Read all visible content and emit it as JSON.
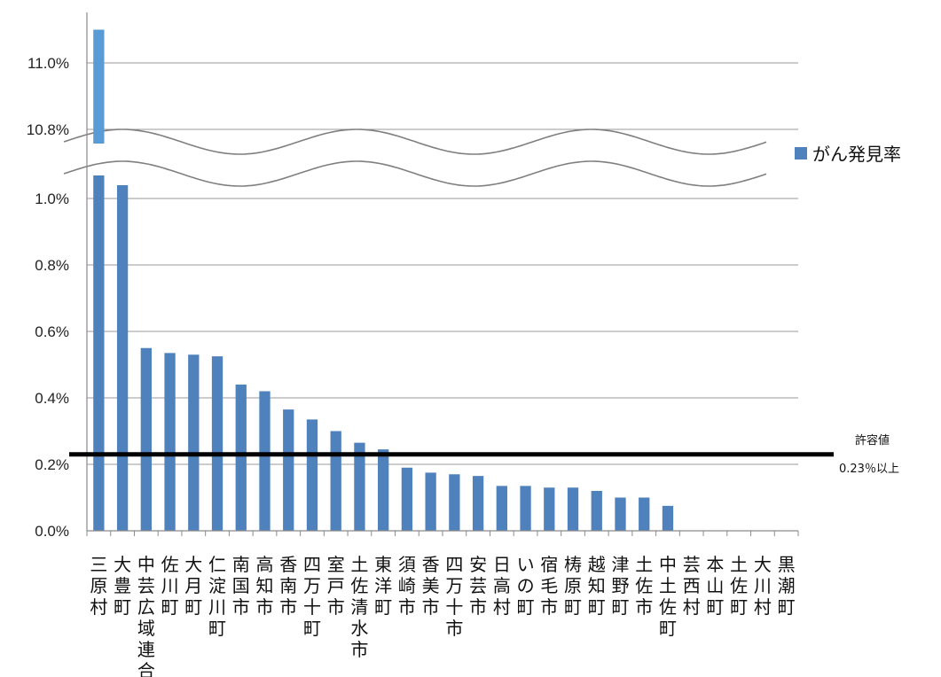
{
  "chart_data": {
    "type": "bar",
    "broken_axis": true,
    "categories": [
      "三原村",
      "大豊町",
      "中芸広域連合",
      "佐川町",
      "大月町",
      "仁淀川町",
      "南国市",
      "高知市",
      "香南市",
      "四万十町",
      "室戸市",
      "土佐清水市",
      "東洋町",
      "須崎市",
      "香美市",
      "四万十市",
      "安芸市",
      "日高村",
      "いの町",
      "宿毛市",
      "梼原町",
      "越知町",
      "津野町",
      "土佐市",
      "中土佐町",
      "芸西村",
      "本山町",
      "土佐町",
      "大川村",
      "黒潮町"
    ],
    "series": [
      {
        "name": "がん発見率",
        "values": [
          11.1,
          1.04,
          0.55,
          0.535,
          0.53,
          0.525,
          0.44,
          0.42,
          0.365,
          0.335,
          0.3,
          0.265,
          0.245,
          0.19,
          0.175,
          0.17,
          0.165,
          0.135,
          0.135,
          0.13,
          0.13,
          0.12,
          0.1,
          0.1,
          0.075,
          0,
          0,
          0,
          0,
          0
        ]
      }
    ],
    "y_ticks_lower": [
      "0.0%",
      "0.2%",
      "0.4%",
      "0.6%",
      "0.8%",
      "1.0%"
    ],
    "y_ticks_upper": [
      "10.8%",
      "11.0%"
    ],
    "ylim_lower": [
      0,
      1.0
    ],
    "ylim_upper": [
      10.8,
      11.0
    ],
    "threshold": {
      "value": 0.23,
      "label_line1": "許容値",
      "label_line2": "0.23％以上"
    },
    "legend": {
      "position": "right",
      "label": "がん発見率"
    },
    "grid": true,
    "bar_color": "#4F81BD",
    "highlight_color": "#5B9BD5"
  }
}
